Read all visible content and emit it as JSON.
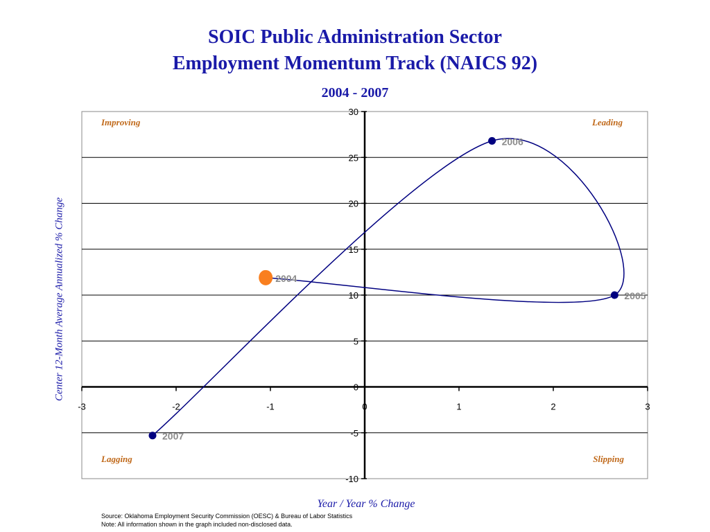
{
  "chart_data": {
    "type": "scatter",
    "title": "SOIC Public Administration Sector",
    "title_line2": "Employment Momentum Track (NAICS 92)",
    "subtitle": "2004 - 2007",
    "xlabel": "Year / Year % Change",
    "ylabel": "Center 12-Month Average Annualized % Change",
    "xlim": [
      -3,
      3
    ],
    "ylim": [
      -10,
      30
    ],
    "xticks": [
      "-3",
      "-2",
      "-1",
      "0",
      "1",
      "2",
      "3"
    ],
    "yticks": [
      "30",
      "25",
      "20",
      "15",
      "10",
      "5",
      "0",
      "-5",
      "-10"
    ],
    "grid": "horizontal",
    "series": [
      {
        "color": "#000080",
        "smooth": true,
        "points": [
          {
            "label": "2004",
            "x": -1.05,
            "y": 11.9,
            "highlight": true
          },
          {
            "label": "2005",
            "x": 2.65,
            "y": 10.0
          },
          {
            "label": "2006",
            "x": 1.35,
            "y": 26.8
          },
          {
            "label": "2007",
            "x": -2.25,
            "y": -5.3
          }
        ]
      }
    ],
    "quadrant_labels": [
      {
        "text": "Improving",
        "pos": "top-left"
      },
      {
        "text": "Leading",
        "pos": "top-right"
      },
      {
        "text": "Lagging",
        "pos": "bottom-left"
      },
      {
        "text": "Slipping",
        "pos": "bottom-right"
      }
    ],
    "highlight_color": "#f97f1f",
    "quadrant_label_color": "#c0691a",
    "point_label_color": "#8c8c8c"
  },
  "footnotes": {
    "source": "Source:  Oklahoma Employment Security Commission (OESC) & Bureau of Labor Statistics",
    "note": "Note: All information shown in the graph included non-disclosed data."
  }
}
